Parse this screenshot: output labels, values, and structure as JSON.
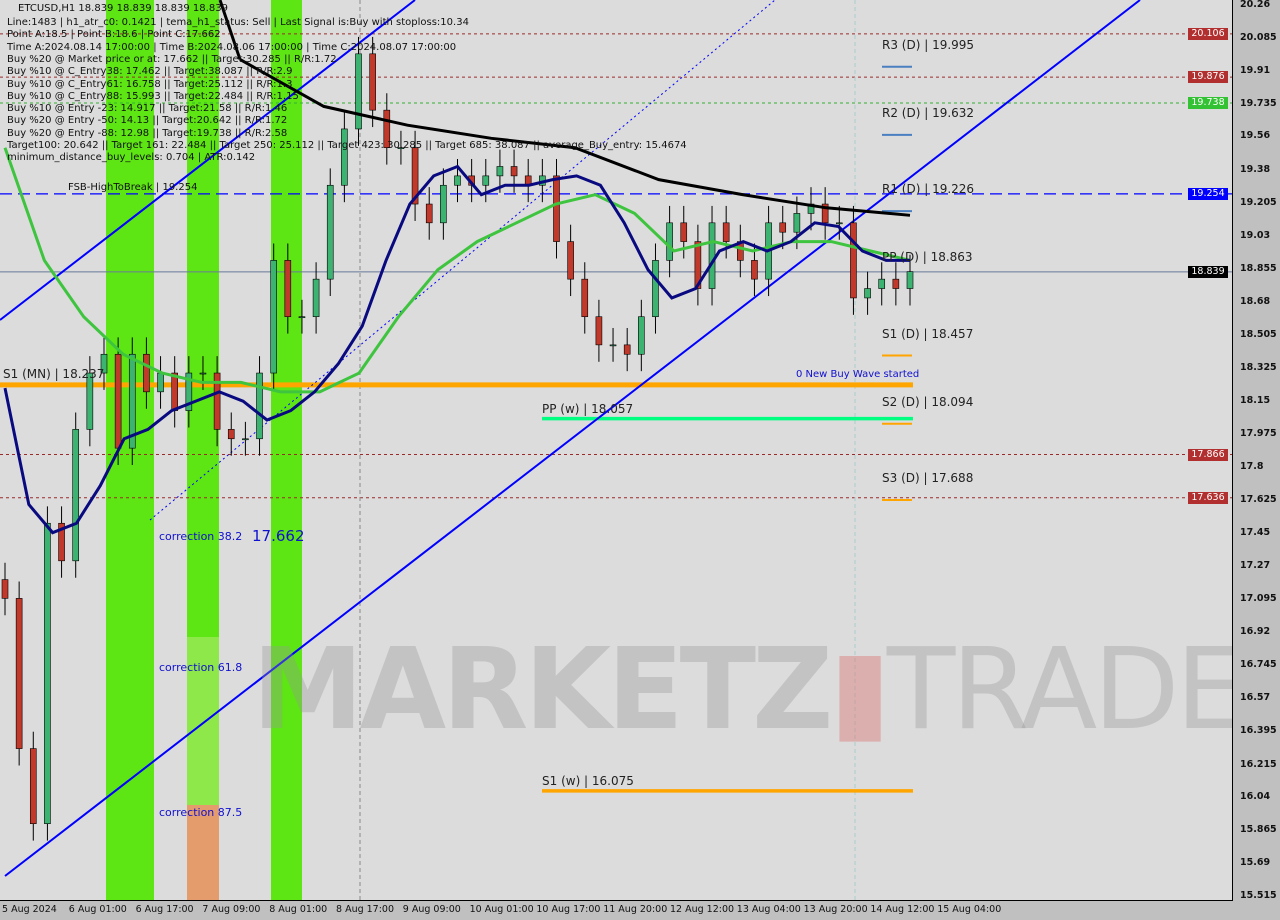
{
  "header": {
    "symbol_line": "ETCUSD,H1  18.839 18.839 18.839 18.839",
    "lines": [
      "Line:1483 | h1_atr_c0: 0.1421 | tema_h1_status: Sell | Last Signal is:Buy with stoploss:10.34",
      "Point A:18.5 | Point B:18.6 | Point C:17.662",
      "Time A:2024.08.14 17:00:00 | Time B:2024.08.06 17:00:00 | Time C:2024.08.07 17:00:00",
      "Buy %20 @ Market price or at: 17.662 || Target:30.285 || R/R:1.72",
      "Buy %10 @ C_Entry38: 17.462 || Target:38.087 || R/R:2.9",
      "Buy %10 @ C_Entry61: 16.758 || Target:25.112 || R/R:1.3",
      "Buy %10 @ C_Entry88: 15.993 || Target:22.484 || R/R:1.15",
      "Buy %10 @ Entry -23: 14.917 || Target:21.58 || R/R:1.46",
      "Buy %20 @ Entry -50: 14.13 || Target:20.642 || R/R:1.72",
      "Buy %20 @ Entry -88: 12.98 || Target:19.738 || R/R:2.58",
      "Target100: 20.642 || Target 161: 22.484 || Target 250: 25.112 || Target 423: 30.285 || Target 685: 38.087 || average_Buy_entry: 15.4674",
      "minimum_distance_buy_levels: 0.704 | ATR:0.142"
    ]
  },
  "watermark": "MARKETZ TRADE",
  "chart_data": {
    "type": "candlestick",
    "symbol": "ETCUSD",
    "timeframe": "H1",
    "ylim": [
      15.515,
      20.26
    ],
    "y_ticks": [
      20.26,
      20.085,
      19.91,
      19.735,
      19.56,
      19.38,
      19.205,
      19.03,
      18.855,
      18.68,
      18.505,
      18.325,
      18.15,
      17.975,
      17.8,
      17.625,
      17.45,
      17.27,
      17.095,
      16.92,
      16.745,
      16.57,
      16.395,
      16.215,
      16.04,
      15.865,
      15.69,
      15.515
    ],
    "x_ticks": [
      "5 Aug 2024",
      "6 Aug 01:00",
      "6 Aug 17:00",
      "7 Aug 09:00",
      "8 Aug 01:00",
      "8 Aug 17:00",
      "9 Aug 09:00",
      "10 Aug 01:00",
      "10 Aug 17:00",
      "11 Aug 20:00",
      "12 Aug 12:00",
      "13 Aug 04:00",
      "13 Aug 20:00",
      "14 Aug 12:00",
      "15 Aug 04:00"
    ],
    "close": [
      17.1,
      16.3,
      15.9,
      17.5,
      17.3,
      18.0,
      18.3,
      18.4,
      17.9,
      18.4,
      18.2,
      18.3,
      18.1,
      18.3,
      18.3,
      18.0,
      17.95,
      17.95,
      18.3,
      18.9,
      18.6,
      18.6,
      18.8,
      19.3,
      19.6,
      20.0,
      19.7,
      19.5,
      19.5,
      19.2,
      19.1,
      19.3,
      19.35,
      19.3,
      19.35,
      19.4,
      19.35,
      19.3,
      19.35,
      19.0,
      18.8,
      18.6,
      18.45,
      18.45,
      18.4,
      18.6,
      18.9,
      19.1,
      19.0,
      18.75,
      19.1,
      19.0,
      18.9,
      18.8,
      19.1,
      19.05,
      19.15,
      19.2,
      19.1,
      19.1,
      18.7,
      18.75,
      18.8,
      18.75,
      18.84
    ],
    "ma_black": [
      19.97,
      19.72,
      19.62,
      19.55,
      19.5,
      19.33,
      19.25,
      19.18,
      19.14
    ],
    "ma_navy": [
      18.22,
      17.6,
      17.45,
      17.5,
      17.7,
      17.95,
      18.0,
      18.1,
      18.15,
      18.2,
      18.15,
      18.05,
      18.1,
      18.2,
      18.35,
      18.55,
      18.9,
      19.2,
      19.35,
      19.4,
      19.25,
      19.3,
      19.3,
      19.33,
      19.35,
      19.3,
      19.1,
      18.85,
      18.7,
      18.75,
      18.95,
      19.0,
      18.95,
      19.0,
      19.1,
      19.08,
      18.95,
      18.9,
      18.9
    ],
    "ma_green": [
      19.5,
      18.9,
      18.6,
      18.4,
      18.3,
      18.25,
      18.25,
      18.2,
      18.2,
      18.3,
      18.6,
      18.85,
      19.0,
      19.1,
      19.2,
      19.25,
      19.15,
      18.95,
      19.0,
      18.95,
      19.0,
      19.0,
      18.95,
      18.9
    ],
    "price_tags": [
      {
        "value": "20.106",
        "color": "#b22f2f"
      },
      {
        "value": "19.876",
        "color": "#b22f2f"
      },
      {
        "value": "19.738",
        "color": "#33c233"
      },
      {
        "value": "19.254",
        "color": "#0000ff"
      },
      {
        "value": "18.839",
        "color": "#000000"
      },
      {
        "value": "17.866",
        "color": "#b22f2f"
      },
      {
        "value": "17.636",
        "color": "#b22f2f"
      }
    ],
    "levels": [
      {
        "label": "R3 (D) | 19.995",
        "value": 19.995
      },
      {
        "label": "R2 (D) | 19.632",
        "value": 19.632
      },
      {
        "label": "R1 (D) | 19.226",
        "value": 19.226
      },
      {
        "label": "PP (D) | 18.863",
        "value": 18.863
      },
      {
        "label": "S1 (D) | 18.457",
        "value": 18.457
      },
      {
        "label": "S2 (D) | 18.094",
        "value": 18.094
      },
      {
        "label": "S3 (D) | 17.688",
        "value": 17.688
      },
      {
        "label": "S1 (MN) | 18.237",
        "value": 18.237
      },
      {
        "label": "PP (w) | 18.057",
        "value": 18.057
      },
      {
        "label": "S1 (w) | 16.075",
        "value": 16.075
      },
      {
        "label": "FSB-HighToBreak | 19.254",
        "value": 19.254
      }
    ],
    "annotations": [
      "0 New Buy Wave started",
      "correction 38.2",
      "17.662",
      "correction 61.8",
      "correction 87.5"
    ]
  }
}
